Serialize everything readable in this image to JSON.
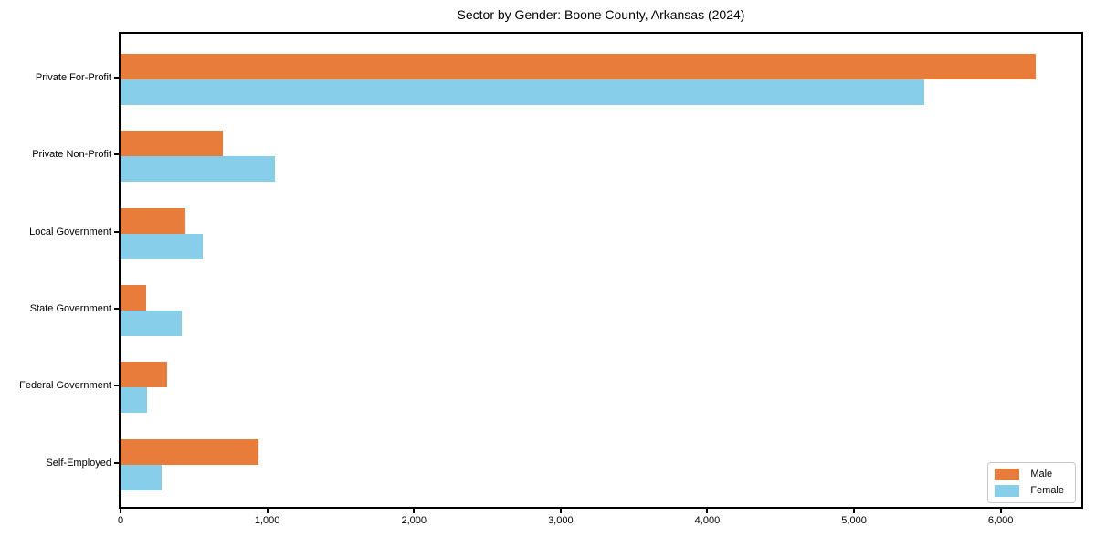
{
  "figure": {
    "title": "Sector by Gender: Boone County, Arkansas (2024)"
  },
  "chart_data": {
    "type": "bar",
    "orientation": "horizontal",
    "title": "Sector by Gender: Boone County, Arkansas (2024)",
    "categories": [
      "Private For-Profit",
      "Private Non-Profit",
      "Local Government",
      "State Government",
      "Federal Government",
      "Self-Employed"
    ],
    "series": [
      {
        "name": "Male",
        "color": "#e87d3b",
        "values": [
          6240,
          700,
          440,
          175,
          320,
          940
        ]
      },
      {
        "name": "Female",
        "color": "#87ceeb",
        "values": [
          5480,
          1050,
          560,
          415,
          180,
          280
        ]
      }
    ],
    "xlabel": "",
    "ylabel": "",
    "xlim": [
      0,
      6550
    ],
    "xticks": [
      0,
      1000,
      2000,
      3000,
      4000,
      5000,
      6000
    ],
    "xtick_labels": [
      "0",
      "1,000",
      "2,000",
      "3,000",
      "4,000",
      "5,000",
      "6,000"
    ],
    "grid": false,
    "background": "#ffffff",
    "spine_color": "#000000",
    "legend": {
      "position": "lower right",
      "entries": [
        "Male",
        "Female"
      ]
    }
  }
}
